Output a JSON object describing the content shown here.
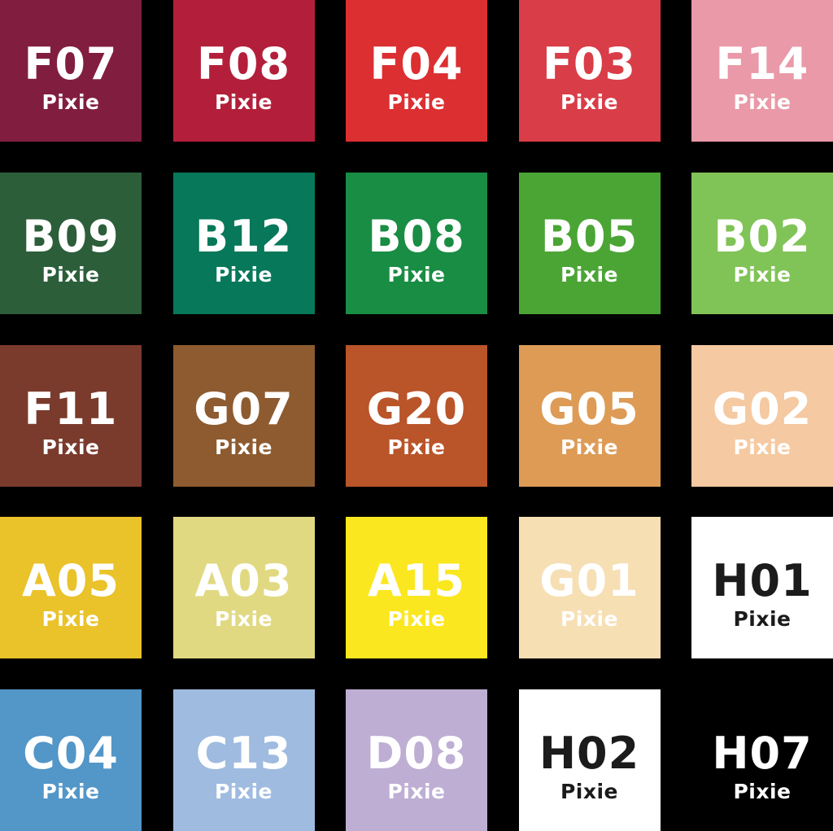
{
  "page": {
    "background": "#000000",
    "brand_label": "Pixie"
  },
  "swatches": [
    {
      "code": "F07",
      "brand": "Pixie",
      "color": "#811E3F",
      "text_color": "#FFFFFF"
    },
    {
      "code": "F08",
      "brand": "Pixie",
      "color": "#B31F3A",
      "text_color": "#FFFFFF"
    },
    {
      "code": "F04",
      "brand": "Pixie",
      "color": "#DC2F31",
      "text_color": "#FFFFFF"
    },
    {
      "code": "F03",
      "brand": "Pixie",
      "color": "#D93D47",
      "text_color": "#FFFFFF"
    },
    {
      "code": "F14",
      "brand": "Pixie",
      "color": "#E999A7",
      "text_color": "#FFFFFF"
    },
    {
      "code": "B09",
      "brand": "Pixie",
      "color": "#2C5E3A",
      "text_color": "#FFFFFF"
    },
    {
      "code": "B12",
      "brand": "Pixie",
      "color": "#07785A",
      "text_color": "#FFFFFF"
    },
    {
      "code": "B08",
      "brand": "Pixie",
      "color": "#198D43",
      "text_color": "#FFFFFF"
    },
    {
      "code": "B05",
      "brand": "Pixie",
      "color": "#4BA535",
      "text_color": "#FFFFFF"
    },
    {
      "code": "B02",
      "brand": "Pixie",
      "color": "#80C357",
      "text_color": "#FFFFFF"
    },
    {
      "code": "F11",
      "brand": "Pixie",
      "color": "#7A3B2C",
      "text_color": "#FFFFFF"
    },
    {
      "code": "G07",
      "brand": "Pixie",
      "color": "#8D5B2F",
      "text_color": "#FFFFFF"
    },
    {
      "code": "G20",
      "brand": "Pixie",
      "color": "#BA5429",
      "text_color": "#FFFFFF"
    },
    {
      "code": "G05",
      "brand": "Pixie",
      "color": "#DD9B56",
      "text_color": "#FFFFFF"
    },
    {
      "code": "G02",
      "brand": "Pixie",
      "color": "#F5C9A1",
      "text_color": "#FFFFFF"
    },
    {
      "code": "A05",
      "brand": "Pixie",
      "color": "#EAC22A",
      "text_color": "#FFFFFF"
    },
    {
      "code": "A03",
      "brand": "Pixie",
      "color": "#E1D982",
      "text_color": "#FFFFFF"
    },
    {
      "code": "A15",
      "brand": "Pixie",
      "color": "#FBE71F",
      "text_color": "#FFFFFF"
    },
    {
      "code": "G01",
      "brand": "Pixie",
      "color": "#F7DFB4",
      "text_color": "#FFFFFF"
    },
    {
      "code": "H01",
      "brand": "Pixie",
      "color": "#FFFFFF",
      "text_color": "#1B1B1B"
    },
    {
      "code": "C04",
      "brand": "Pixie",
      "color": "#5396C8",
      "text_color": "#FFFFFF"
    },
    {
      "code": "C13",
      "brand": "Pixie",
      "color": "#9FBBDF",
      "text_color": "#FFFFFF"
    },
    {
      "code": "D08",
      "brand": "Pixie",
      "color": "#BEAED3",
      "text_color": "#FFFFFF"
    },
    {
      "code": "H02",
      "brand": "Pixie",
      "color": "#FFFFFF",
      "text_color": "#1B1B1B"
    },
    {
      "code": "H07",
      "brand": "Pixie",
      "color": "#000000",
      "text_color": "#FFFFFF"
    }
  ]
}
